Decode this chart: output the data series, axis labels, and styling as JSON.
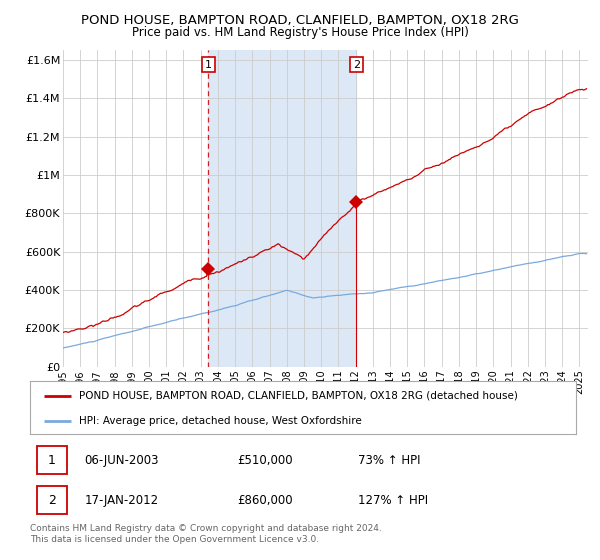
{
  "title": "POND HOUSE, BAMPTON ROAD, CLANFIELD, BAMPTON, OX18 2RG",
  "subtitle": "Price paid vs. HM Land Registry's House Price Index (HPI)",
  "title_fontsize": 9.5,
  "subtitle_fontsize": 8.5,
  "red_label": "POND HOUSE, BAMPTON ROAD, CLANFIELD, BAMPTON, OX18 2RG (detached house)",
  "blue_label": "HPI: Average price, detached house, West Oxfordshire",
  "sale1_date": "06-JUN-2003",
  "sale1_price": 510000,
  "sale1_hpi": "73% ↑ HPI",
  "sale2_date": "17-JAN-2012",
  "sale2_price": 860000,
  "sale2_hpi": "127% ↑ HPI",
  "footnote1": "Contains HM Land Registry data © Crown copyright and database right 2024.",
  "footnote2": "This data is licensed under the Open Government Licence v3.0.",
  "ylim": [
    0,
    1650000
  ],
  "yticks": [
    0,
    200000,
    400000,
    600000,
    800000,
    1000000,
    1200000,
    1400000,
    1600000
  ],
  "background_color": "#ffffff",
  "grid_color": "#cccccc",
  "red_color": "#cc0000",
  "blue_color": "#7aaadd",
  "shading_color": "#dce8f5",
  "dashed_line_color": "#cc0000",
  "sale1_year": 2003.44,
  "sale2_year": 2012.05,
  "xmin": 1995.0,
  "xmax": 2025.5
}
